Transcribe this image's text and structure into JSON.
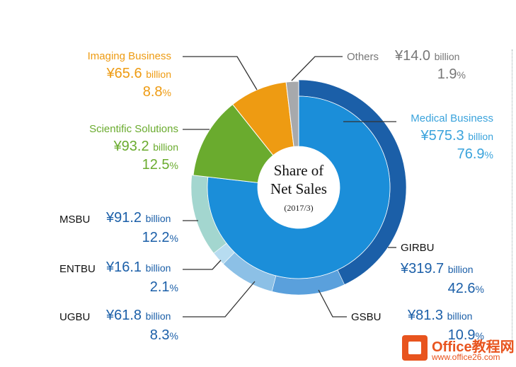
{
  "chart_data": {
    "type": "pie",
    "title": "Share of",
    "title_line2": "Net Sales",
    "subtitle": "(2017/3)",
    "segments": [
      {
        "name": "Medical Business",
        "amount": "¥575.3",
        "unit": "billion",
        "percent": "76.9",
        "value": 76.9,
        "color": "#1a74b8"
      },
      {
        "name": "Scientific Solutions",
        "amount": "¥93.2",
        "unit": "billion",
        "percent": "12.5",
        "value": 12.5,
        "color": "#6aab2e"
      },
      {
        "name": "Imaging Business",
        "amount": "¥65.6",
        "unit": "billion",
        "percent": "8.8",
        "value": 8.8,
        "color": "#ee9b12"
      },
      {
        "name": "Others",
        "amount": "¥14.0",
        "unit": "billion",
        "percent": "1.9",
        "value": 1.9,
        "color": "#a7a9ac"
      }
    ],
    "medical_breakdown": [
      {
        "name": "GIRBU",
        "amount": "¥319.7",
        "unit": "billion",
        "percent": "42.6",
        "value": 42.6,
        "color": "#1b5fa8"
      },
      {
        "name": "GSBU",
        "amount": "¥81.3",
        "unit": "billion",
        "percent": "10.9",
        "value": 10.9,
        "color": "#5aa0dc"
      },
      {
        "name": "UGBU",
        "amount": "¥61.8",
        "unit": "billion",
        "percent": "8.3",
        "value": 8.3,
        "color": "#8cc0e6"
      },
      {
        "name": "ENTBU",
        "amount": "¥16.1",
        "unit": "billion",
        "percent": "2.1",
        "value": 2.1,
        "color": "#b7dcf0"
      },
      {
        "name": "MSBU",
        "amount": "¥91.2",
        "unit": "billion",
        "percent": "12.2",
        "value": 12.2,
        "color": "#a3d6cf"
      }
    ],
    "inner_color": "#1b8ed9"
  },
  "watermark": {
    "title": "Office教程网",
    "url": "www.office26.com"
  }
}
